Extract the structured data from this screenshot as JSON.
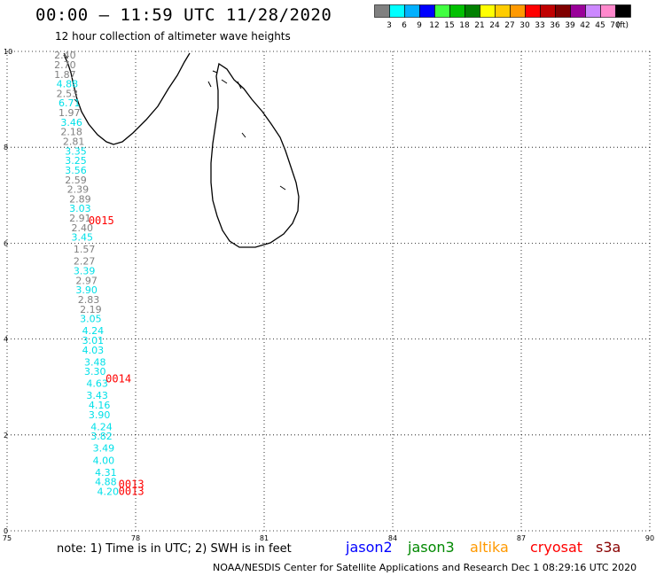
{
  "header": {
    "title": "00:00 – 11:59 UTC 11/28/2020",
    "subtitle": "12 hour collection of altimeter wave heights"
  },
  "legend": {
    "unit": "(ft)",
    "bins": [
      {
        "label": "3",
        "color": "#808080"
      },
      {
        "label": "6",
        "color": "#00ffff"
      },
      {
        "label": "9",
        "color": "#00b0ff"
      },
      {
        "label": "12",
        "color": "#0000ff"
      },
      {
        "label": "15",
        "color": "#40ff40"
      },
      {
        "label": "18",
        "color": "#00c000"
      },
      {
        "label": "21",
        "color": "#008000"
      },
      {
        "label": "24",
        "color": "#ffff00"
      },
      {
        "label": "27",
        "color": "#ffcc00"
      },
      {
        "label": "30",
        "color": "#ff9900"
      },
      {
        "label": "33",
        "color": "#ff0000"
      },
      {
        "label": "36",
        "color": "#c00000"
      },
      {
        "label": "39",
        "color": "#800000"
      },
      {
        "label": "42",
        "color": "#990099"
      },
      {
        "label": "45",
        "color": "#cc88ff"
      },
      {
        "label": "70",
        "color": "#ff88cc"
      },
      {
        "label": "",
        "color": "#000000"
      }
    ]
  },
  "map": {
    "lon_range": [
      75,
      90
    ],
    "lat_range": [
      0,
      10
    ],
    "lon_ticks": [
      "75",
      "78",
      "81",
      "84",
      "87",
      "90"
    ],
    "lat_ticks": [
      "0",
      "2",
      "4",
      "6",
      "8",
      "10"
    ],
    "colors": {
      "gray": "#808080",
      "cyan": "#00e0e8",
      "red": "#ff0000",
      "land": "#000000"
    },
    "observations": [
      {
        "lon": 76.1,
        "lat": 9.85,
        "v": "2.40",
        "c": "gray"
      },
      {
        "lon": 76.1,
        "lat": 9.65,
        "v": "2.70",
        "c": "gray"
      },
      {
        "lon": 76.1,
        "lat": 9.45,
        "v": "1.87",
        "c": "gray"
      },
      {
        "lon": 76.15,
        "lat": 9.25,
        "v": "4.88",
        "c": "cyan"
      },
      {
        "lon": 76.15,
        "lat": 9.05,
        "v": "2.53",
        "c": "gray"
      },
      {
        "lon": 76.2,
        "lat": 8.85,
        "v": "6.71",
        "c": "cyan"
      },
      {
        "lon": 76.2,
        "lat": 8.65,
        "v": "1.97",
        "c": "gray"
      },
      {
        "lon": 76.25,
        "lat": 8.45,
        "v": "3.46",
        "c": "cyan"
      },
      {
        "lon": 76.25,
        "lat": 8.25,
        "v": "2.18",
        "c": "gray"
      },
      {
        "lon": 76.3,
        "lat": 8.05,
        "v": "2.81",
        "c": "gray"
      },
      {
        "lon": 76.35,
        "lat": 7.85,
        "v": "3.35",
        "c": "cyan"
      },
      {
        "lon": 76.35,
        "lat": 7.65,
        "v": "3.25",
        "c": "cyan"
      },
      {
        "lon": 76.35,
        "lat": 7.45,
        "v": "3.56",
        "c": "cyan"
      },
      {
        "lon": 76.35,
        "lat": 7.25,
        "v": "2.59",
        "c": "gray"
      },
      {
        "lon": 76.4,
        "lat": 7.05,
        "v": "2.39",
        "c": "gray"
      },
      {
        "lon": 76.45,
        "lat": 6.85,
        "v": "2.89",
        "c": "gray"
      },
      {
        "lon": 76.45,
        "lat": 6.65,
        "v": "3.03",
        "c": "cyan"
      },
      {
        "lon": 76.45,
        "lat": 6.45,
        "v": "2.91",
        "c": "gray"
      },
      {
        "lon": 76.5,
        "lat": 6.25,
        "v": "2.40",
        "c": "gray"
      },
      {
        "lon": 76.5,
        "lat": 6.05,
        "v": "3.45",
        "c": "cyan"
      },
      {
        "lon": 76.55,
        "lat": 5.8,
        "v": "1.57",
        "c": "gray"
      },
      {
        "lon": 76.55,
        "lat": 5.55,
        "v": "2.27",
        "c": "gray"
      },
      {
        "lon": 76.55,
        "lat": 5.35,
        "v": "3.39",
        "c": "cyan"
      },
      {
        "lon": 76.6,
        "lat": 5.15,
        "v": "2.97",
        "c": "gray"
      },
      {
        "lon": 76.6,
        "lat": 4.95,
        "v": "3.90",
        "c": "cyan"
      },
      {
        "lon": 76.65,
        "lat": 4.75,
        "v": "2.83",
        "c": "gray"
      },
      {
        "lon": 76.7,
        "lat": 4.55,
        "v": "2.19",
        "c": "gray"
      },
      {
        "lon": 76.7,
        "lat": 4.35,
        "v": "3.05",
        "c": "cyan"
      },
      {
        "lon": 76.75,
        "lat": 4.1,
        "v": "4.24",
        "c": "cyan"
      },
      {
        "lon": 76.75,
        "lat": 3.9,
        "v": "3.01",
        "c": "cyan"
      },
      {
        "lon": 76.75,
        "lat": 3.7,
        "v": "4.03",
        "c": "cyan"
      },
      {
        "lon": 76.8,
        "lat": 3.45,
        "v": "3.48",
        "c": "cyan"
      },
      {
        "lon": 76.8,
        "lat": 3.25,
        "v": "3.30",
        "c": "cyan"
      },
      {
        "lon": 76.85,
        "lat": 3.0,
        "v": "4.63",
        "c": "cyan"
      },
      {
        "lon": 76.85,
        "lat": 2.75,
        "v": "3.43",
        "c": "cyan"
      },
      {
        "lon": 76.9,
        "lat": 2.55,
        "v": "4.16",
        "c": "cyan"
      },
      {
        "lon": 76.9,
        "lat": 2.35,
        "v": "3.90",
        "c": "cyan"
      },
      {
        "lon": 76.95,
        "lat": 2.1,
        "v": "4.24",
        "c": "cyan"
      },
      {
        "lon": 76.95,
        "lat": 1.9,
        "v": "3.82",
        "c": "cyan"
      },
      {
        "lon": 77.0,
        "lat": 1.65,
        "v": "3.49",
        "c": "cyan"
      },
      {
        "lon": 77.0,
        "lat": 1.4,
        "v": "4.00",
        "c": "cyan"
      },
      {
        "lon": 77.05,
        "lat": 1.15,
        "v": "4.31",
        "c": "cyan"
      },
      {
        "lon": 77.05,
        "lat": 0.95,
        "v": "4.88",
        "c": "cyan"
      },
      {
        "lon": 77.1,
        "lat": 0.75,
        "v": "4.20",
        "c": "cyan"
      }
    ],
    "pass_labels": [
      {
        "lon": 76.9,
        "lat": 6.4,
        "v": "0015",
        "c": "red"
      },
      {
        "lon": 77.3,
        "lat": 3.1,
        "v": "0014",
        "c": "red"
      },
      {
        "lon": 77.6,
        "lat": 0.9,
        "v": "0013",
        "c": "red"
      },
      {
        "lon": 77.6,
        "lat": 0.75,
        "v": "0013",
        "c": "red"
      }
    ]
  },
  "footer": {
    "note": "note:  1) Time is in UTC;  2) SWH is in feet",
    "credit": "NOAA/NESDIS Center for Satellite Applications and Research    Dec  1 08:29:16 UTC 2020",
    "satellites": [
      {
        "name": "jason2",
        "color": "#0000ff"
      },
      {
        "name": "jason3",
        "color": "#008800"
      },
      {
        "name": "altika",
        "color": "#ff9900"
      },
      {
        "name": "cryosat",
        "color": "#ff0000"
      },
      {
        "name": "s3a",
        "color": "#880000"
      }
    ]
  }
}
